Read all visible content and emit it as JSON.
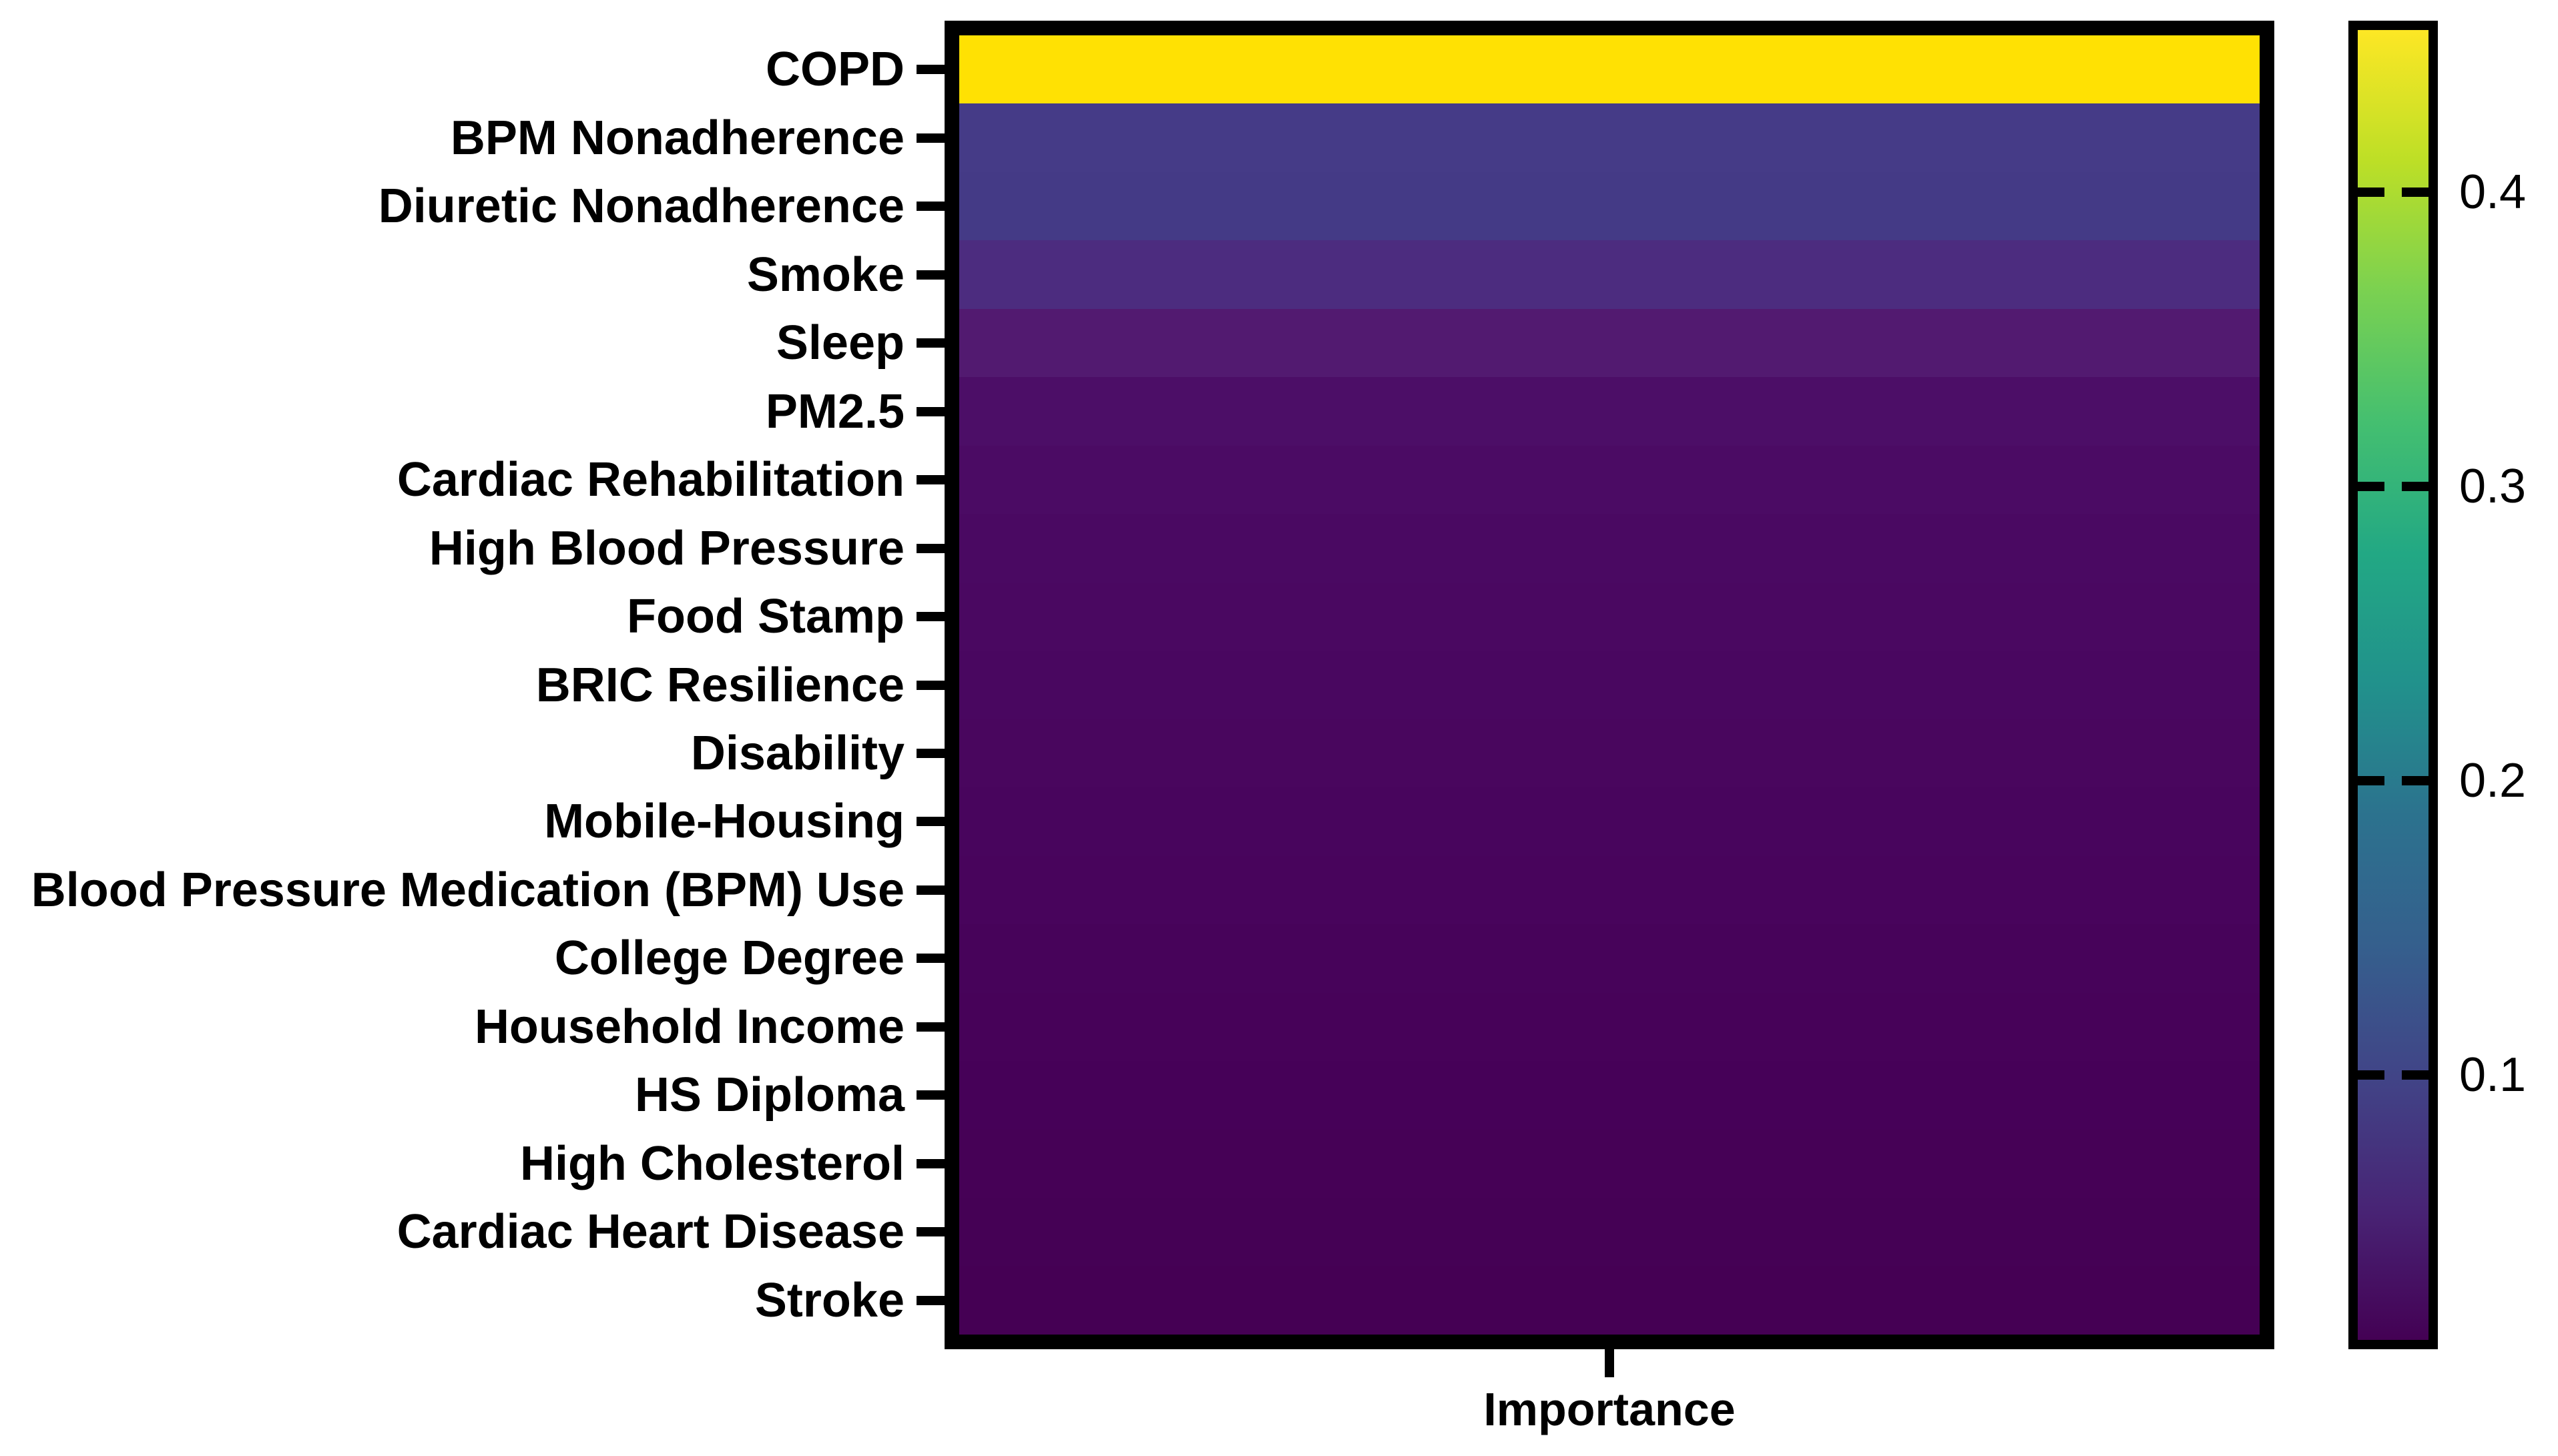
{
  "figure": {
    "background": "#ffffff",
    "x_axis": {
      "label": "Importance"
    },
    "rows": [
      {
        "label": "COPD",
        "color": "#FFE103",
        "value": 0.45
      },
      {
        "label": "BPM Nonadherence",
        "color": "#453B87",
        "value": 0.085
      },
      {
        "label": "Diuretic Nonadherence",
        "color": "#443A86",
        "value": 0.083
      },
      {
        "label": "Smoke",
        "color": "#4C2C7F",
        "value": 0.057
      },
      {
        "label": "Sleep",
        "color": "#521A70",
        "value": 0.032
      },
      {
        "label": "PM2.5",
        "color": "#4C0E67",
        "value": 0.016
      },
      {
        "label": "Cardiac Rehabilitation",
        "color": "#4B0B64",
        "value": 0.013
      },
      {
        "label": "High Blood Pressure",
        "color": "#4A0962",
        "value": 0.011
      },
      {
        "label": "Food Stamp",
        "color": "#4A0861",
        "value": 0.01
      },
      {
        "label": "BRIC Resilience",
        "color": "#490760",
        "value": 0.009
      },
      {
        "label": "Disability",
        "color": "#49065E",
        "value": 0.008
      },
      {
        "label": "Mobile-Housing",
        "color": "#48055D",
        "value": 0.007
      },
      {
        "label": "Blood Pressure Medication (BPM) Use",
        "color": "#48045C",
        "value": 0.006
      },
      {
        "label": "College Degree",
        "color": "#47035A",
        "value": 0.005
      },
      {
        "label": "Household Income",
        "color": "#470259",
        "value": 0.0045
      },
      {
        "label": "HS Diploma",
        "color": "#460158",
        "value": 0.004
      },
      {
        "label": "High Cholesterol",
        "color": "#460156",
        "value": 0.003
      },
      {
        "label": "Cardiac Heart Disease",
        "color": "#450155",
        "value": 0.0025
      },
      {
        "label": "Stroke",
        "color": "#450054",
        "value": 0.002
      }
    ],
    "colorbar": {
      "colormap": "viridis",
      "vmin": 0.01,
      "vmax": 0.455,
      "ticks": [
        {
          "label": "0.4",
          "value": 0.4
        },
        {
          "label": "0.3",
          "value": 0.3
        },
        {
          "label": "0.2",
          "value": 0.2
        },
        {
          "label": "0.1",
          "value": 0.1
        }
      ],
      "gradient_top_to_bottom": [
        "#fde725",
        "#bddf26",
        "#7ad151",
        "#44bf70",
        "#22a884",
        "#21918c",
        "#2c728e",
        "#355f8d",
        "#414487",
        "#482475",
        "#440154"
      ]
    }
  },
  "chart_data": {
    "type": "heatmap",
    "title": "",
    "xlabel": "Importance",
    "ylabel": "",
    "columns": [
      "Importance"
    ],
    "categories": [
      "COPD",
      "BPM Nonadherence",
      "Diuretic Nonadherence",
      "Smoke",
      "Sleep",
      "PM2.5",
      "Cardiac Rehabilitation",
      "High Blood Pressure",
      "Food Stamp",
      "BRIC Resilience",
      "Disability",
      "Mobile-Housing",
      "Blood Pressure Medication (BPM) Use",
      "College Degree",
      "Household Income",
      "HS Diploma",
      "High Cholesterol",
      "Cardiac Heart Disease",
      "Stroke"
    ],
    "values": [
      0.45,
      0.085,
      0.083,
      0.057,
      0.032,
      0.016,
      0.013,
      0.011,
      0.01,
      0.009,
      0.008,
      0.007,
      0.006,
      0.005,
      0.0045,
      0.004,
      0.003,
      0.0025,
      0.002
    ],
    "values_note": "estimated by matching each row's viridis color against the colorbar scale",
    "colormap": "viridis",
    "color_range": [
      0.01,
      0.455
    ],
    "colorbar_ticks": [
      0.1,
      0.2,
      0.3,
      0.4
    ],
    "legend_position": "right-colorbar",
    "grid": false
  }
}
